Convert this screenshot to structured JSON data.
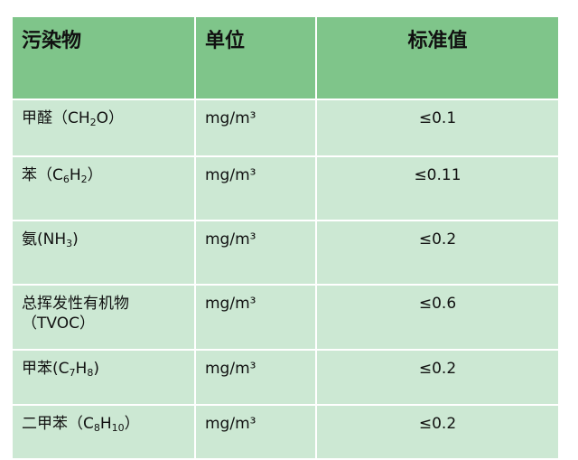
{
  "header": {
    "col1": "污染物",
    "col2": "单位",
    "col3": "标准值"
  },
  "rows": [
    {
      "name": [
        "甲醛（CH",
        "2",
        "O）"
      ],
      "unit": "mg/m³",
      "value": "≤0.1"
    },
    {
      "name": [
        "苯（C",
        "6",
        "H",
        "2",
        "）"
      ],
      "unit": "mg/m³",
      "value": "≤0.11"
    },
    {
      "name": [
        "氨(NH",
        "3",
        ")"
      ],
      "unit": "mg/m³",
      "value": "≤0.2"
    },
    {
      "name": [
        "总挥发性有机物",
        "（TVOC）"
      ],
      "unit": "mg/m³",
      "value": "≤0.6"
    },
    {
      "name": [
        "甲苯(C",
        "7",
        "H",
        "8",
        ")"
      ],
      "unit": "mg/m³",
      "value": "≤0.2"
    },
    {
      "name": [
        "二甲苯（C",
        "8",
        "H",
        "10",
        "）"
      ],
      "unit": "mg/m³",
      "value": "≤0.2"
    }
  ],
  "colors": {
    "header_bg": "#7fc58a",
    "row_bg": "#cce8d3"
  }
}
